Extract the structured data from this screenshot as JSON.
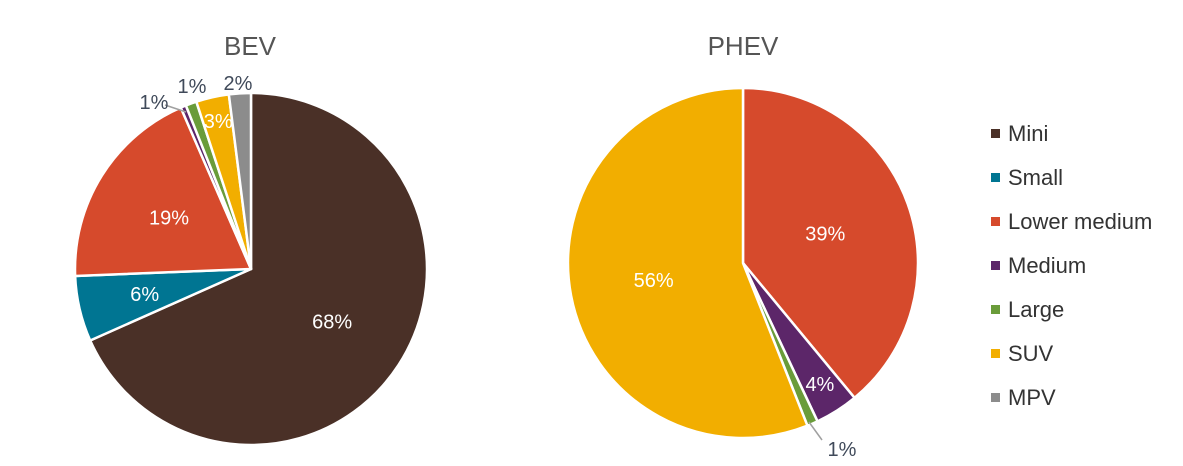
{
  "legend": {
    "placement": "right",
    "items": [
      {
        "name": "Mini",
        "color": "#4a3027"
      },
      {
        "name": "Small",
        "color": "#007592"
      },
      {
        "name": "Lower medium",
        "color": "#d64a2c"
      },
      {
        "name": "Medium",
        "color": "#5c2669"
      },
      {
        "name": "Large",
        "color": "#6a9c3a"
      },
      {
        "name": "SUV",
        "color": "#f2ae00"
      },
      {
        "name": "MPV",
        "color": "#8c8c8c"
      }
    ]
  },
  "chart_data": [
    {
      "type": "pie",
      "title": "BEV",
      "categories": [
        "Mini",
        "Small",
        "Lower medium",
        "Medium",
        "Large",
        "SUV",
        "MPV"
      ],
      "values": [
        68,
        6,
        19,
        0.5,
        1,
        3,
        2
      ],
      "labels": [
        "68%",
        "6%",
        "19%",
        "1%",
        "1%",
        "3%",
        "2%"
      ]
    },
    {
      "type": "pie",
      "title": "PHEV",
      "categories": [
        "Mini",
        "Small",
        "Lower medium",
        "Medium",
        "Large",
        "SUV",
        "MPV"
      ],
      "values": [
        0,
        0,
        39,
        4,
        1,
        56,
        0
      ],
      "labels": [
        "",
        "",
        "39%",
        "4%",
        "1%",
        "56%",
        ""
      ]
    }
  ]
}
